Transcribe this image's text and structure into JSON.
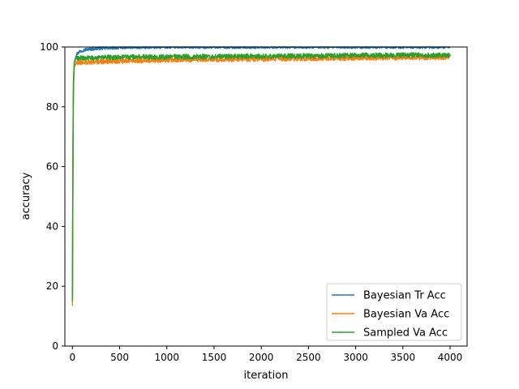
{
  "chart_data": {
    "type": "line",
    "title": "",
    "xlabel": "iteration",
    "ylabel": "accuracy",
    "xlim": [
      -80,
      4180
    ],
    "ylim": [
      0,
      100
    ],
    "xticks": [
      0,
      500,
      1000,
      1500,
      2000,
      2500,
      3000,
      3500,
      4000
    ],
    "yticks": [
      0,
      20,
      40,
      60,
      80,
      100
    ],
    "grid": false,
    "legend_position": "lower-right",
    "series": [
      {
        "name": "Bayesian Tr Acc",
        "color": "#1f77b4",
        "x_max": 4000,
        "points": [
          [
            0,
            15
          ],
          [
            5,
            60
          ],
          [
            10,
            88
          ],
          [
            20,
            95
          ],
          [
            40,
            97.5
          ],
          [
            80,
            98.6
          ],
          [
            150,
            99.2
          ],
          [
            300,
            99.6
          ],
          [
            600,
            99.9
          ],
          [
            1000,
            100
          ],
          [
            4000,
            100
          ]
        ],
        "noise": 0.5
      },
      {
        "name": "Bayesian Va Acc",
        "color": "#ff7f0e",
        "x_max": 4000,
        "points": [
          [
            0,
            13.5
          ],
          [
            5,
            55
          ],
          [
            10,
            85
          ],
          [
            20,
            93.5
          ],
          [
            40,
            94.8
          ],
          [
            200,
            95.0
          ],
          [
            1000,
            95.7
          ],
          [
            2000,
            96.0
          ],
          [
            3000,
            96.3
          ],
          [
            4000,
            96.6
          ]
        ],
        "noise": 0.8
      },
      {
        "name": "Sampled Va Acc",
        "color": "#2ca02c",
        "x_max": 4000,
        "points": [
          [
            0,
            15
          ],
          [
            5,
            58
          ],
          [
            10,
            88
          ],
          [
            20,
            95
          ],
          [
            40,
            96.2
          ],
          [
            500,
            96.6
          ],
          [
            1500,
            96.8
          ],
          [
            2500,
            97.0
          ],
          [
            3500,
            97.3
          ],
          [
            4000,
            97.3
          ]
        ],
        "noise": 0.8
      }
    ]
  }
}
